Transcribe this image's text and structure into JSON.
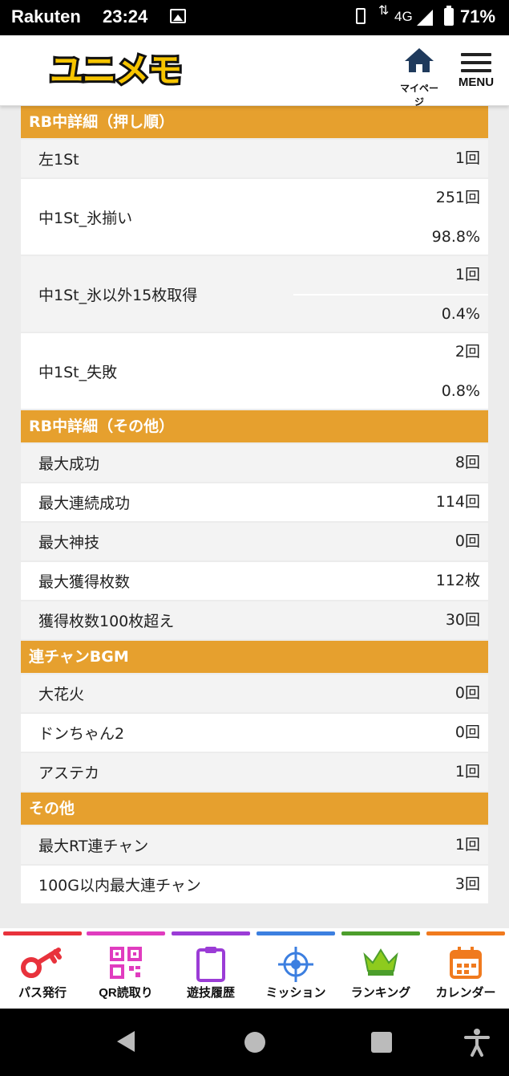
{
  "status_bar": {
    "carrier": "Rakuten",
    "time": "23:24",
    "network": "4G",
    "battery": "71%",
    "icons": [
      "photo-icon",
      "vibrate-icon",
      "data-arrows-icon",
      "signal-icon",
      "battery-icon"
    ]
  },
  "header": {
    "logo_text": "ユニメモ",
    "mypage_label": "マイページ",
    "menu_label": "MENU"
  },
  "sections": [
    {
      "title": "RB中詳細（押し順）",
      "rows": [
        {
          "label": "左1St",
          "values": [
            "1回"
          ]
        },
        {
          "label": "中1St_氷揃い",
          "values": [
            "251回",
            "98.8%"
          ]
        },
        {
          "label": "中1St_氷以外15枚取得",
          "values": [
            "1回",
            "0.4%"
          ]
        },
        {
          "label": "中1St_失敗",
          "values": [
            "2回",
            "0.8%"
          ]
        }
      ]
    },
    {
      "title": "RB中詳細（その他）",
      "rows": [
        {
          "label": "最大成功",
          "values": [
            "8回"
          ]
        },
        {
          "label": "最大連続成功",
          "values": [
            "114回"
          ]
        },
        {
          "label": "最大神技",
          "values": [
            "0回"
          ]
        },
        {
          "label": "最大獲得枚数",
          "values": [
            "112枚"
          ]
        },
        {
          "label": "獲得枚数100枚超え",
          "values": [
            "30回"
          ]
        }
      ]
    },
    {
      "title": "連チャンBGM",
      "rows": [
        {
          "label": "大花火",
          "values": [
            "0回"
          ]
        },
        {
          "label": "ドンちゃん2",
          "values": [
            "0回"
          ]
        },
        {
          "label": "アステカ",
          "values": [
            "1回"
          ]
        }
      ]
    },
    {
      "title": "その他",
      "rows": [
        {
          "label": "最大RT連チャン",
          "values": [
            "1回"
          ]
        },
        {
          "label": "100G以内最大連チャン",
          "values": [
            "3回"
          ]
        }
      ]
    }
  ],
  "bottom_nav": [
    {
      "label": "パス発行",
      "icon": "key-icon",
      "color": "#e8323c"
    },
    {
      "label": "QR読取り",
      "icon": "qr-code-icon",
      "color": "#e03cbf"
    },
    {
      "label": "遊技履歴",
      "icon": "clipboard-icon",
      "color": "#9b3cd6"
    },
    {
      "label": "ミッション",
      "icon": "target-icon",
      "color": "#3c7fe0"
    },
    {
      "label": "ランキング",
      "icon": "crown-icon",
      "color": "#4c9e2c"
    },
    {
      "label": "カレンダー",
      "icon": "calendar-icon",
      "color": "#f07a1e"
    }
  ],
  "colors": {
    "section_header": "#e6a02e",
    "row_bg": "#ffffff",
    "row_alt_bg": "#f3f3f3",
    "page_bg": "#ececec"
  }
}
